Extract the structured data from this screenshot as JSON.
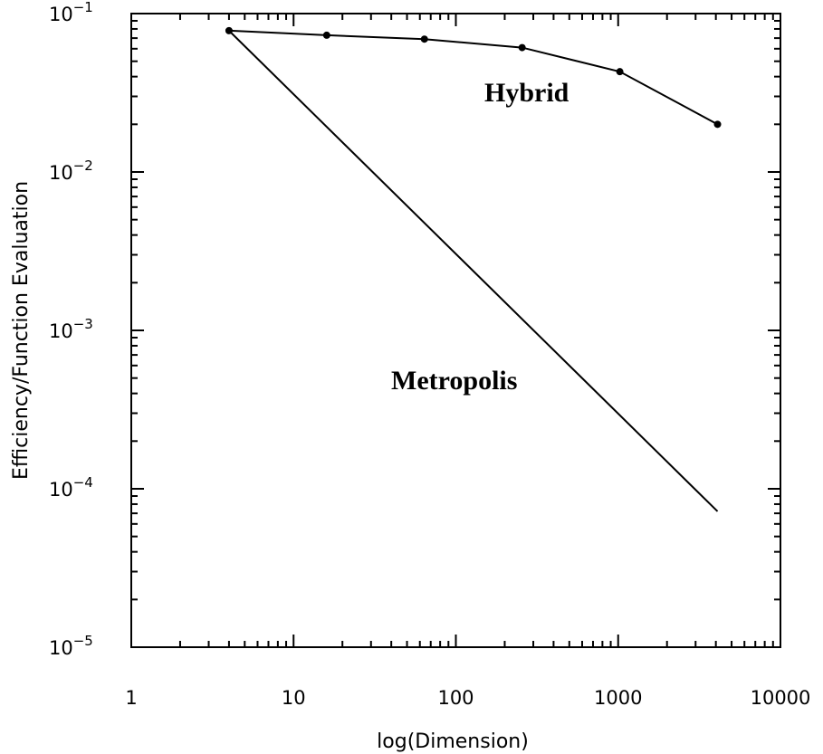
{
  "chart_data": {
    "type": "line",
    "title": "",
    "xlabel": "log(Dimension)",
    "ylabel": "Efficiency/Function Evaluation",
    "x_scale": "log",
    "y_scale": "log",
    "xlim": [
      1,
      10000
    ],
    "ylim": [
      1e-05,
      0.1
    ],
    "x_tick_labels": [
      "1",
      "10",
      "100",
      "1000",
      "10000"
    ],
    "x_ticks": [
      1,
      10,
      100,
      1000,
      10000
    ],
    "y_ticks": [
      {
        "value": 0.1,
        "base": "10",
        "exp": "−1"
      },
      {
        "value": 0.01,
        "base": "10",
        "exp": "−2"
      },
      {
        "value": 0.001,
        "base": "10",
        "exp": "−3"
      },
      {
        "value": 0.0001,
        "base": "10",
        "exp": "−4"
      },
      {
        "value": 1e-05,
        "base": "10",
        "exp": "−5"
      }
    ],
    "grid": false,
    "legend": "none",
    "series": [
      {
        "name": "Hybrid",
        "x": [
          4,
          16,
          64,
          256,
          1024,
          4096
        ],
        "y": [
          0.078,
          0.073,
          0.069,
          0.061,
          0.043,
          0.02
        ],
        "markers": true,
        "color": "#000000"
      },
      {
        "name": "Metropolis",
        "x": [
          4,
          4096
        ],
        "y": [
          0.078,
          7.2e-05
        ],
        "markers": false,
        "color": "#000000"
      }
    ],
    "annotations": [
      {
        "text": "Hybrid",
        "series": "Hybrid"
      },
      {
        "text": "Metropolis",
        "series": "Metropolis"
      }
    ]
  }
}
